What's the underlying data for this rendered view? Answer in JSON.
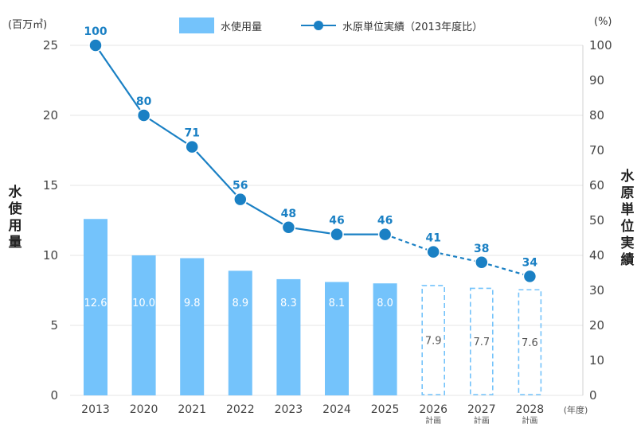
{
  "legend": {
    "bar_label": "水使用量",
    "line_label": "水原単位実績（2013年度比）"
  },
  "units": {
    "left": "(百万㎥)",
    "right": "(%)",
    "x": "(年度)"
  },
  "axis_titles": {
    "left": "水使用量",
    "right": "水原単位実績"
  },
  "colors": {
    "bar": "#74c3fb",
    "bar_planned_border": "#74c3fb",
    "line": "#1a80c4",
    "label": "#1a80c4",
    "grid": "#e4e4e4"
  },
  "chart_data": {
    "type": "bar",
    "categories": [
      "2013",
      "2020",
      "2021",
      "2022",
      "2023",
      "2024",
      "2025",
      "2026",
      "2027",
      "2028"
    ],
    "category_notes": [
      "",
      "",
      "",
      "",
      "",
      "",
      "",
      "計画",
      "計画",
      "計画"
    ],
    "bar_values": [
      12.6,
      10.0,
      9.8,
      8.9,
      8.3,
      8.1,
      8.0,
      7.9,
      7.7,
      7.6
    ],
    "bar_labels": [
      "12.6",
      "10.0",
      "9.8",
      "8.9",
      "8.3",
      "8.1",
      "8.0",
      "7.9",
      "7.7",
      "7.6"
    ],
    "planned": [
      false,
      false,
      false,
      false,
      false,
      false,
      false,
      true,
      true,
      true
    ],
    "line_values": [
      100,
      80,
      71,
      56,
      48,
      46,
      46,
      41,
      38,
      34
    ],
    "line_labels": [
      "100",
      "80",
      "71",
      "56",
      "48",
      "46",
      "46",
      "41",
      "38",
      "34"
    ],
    "line_dashed_from_index": 6,
    "ylim_left": [
      0,
      25
    ],
    "yticks_left": [
      "0",
      "5",
      "10",
      "15",
      "20",
      "25"
    ],
    "ylim_right": [
      0,
      100
    ],
    "yticks_right": [
      "0",
      "10",
      "20",
      "30",
      "40",
      "50",
      "60",
      "70",
      "80",
      "90",
      "100"
    ],
    "grid": true
  }
}
